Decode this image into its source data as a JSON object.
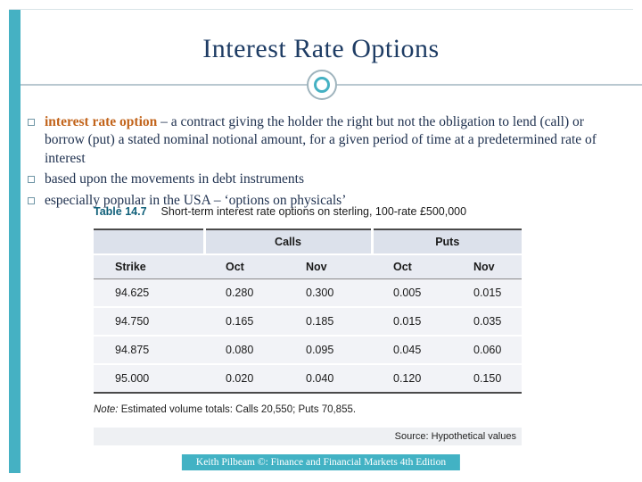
{
  "slide": {
    "title": "Interest Rate Options",
    "bullets": [
      {
        "lead": "interest rate option",
        "text": " – a contract giving the holder the right but not the obligation to lend (call) or borrow (put) a stated nominal notional amount, for a given period of time at a predetermined rate of interest"
      },
      {
        "lead": "",
        "text": "based upon the movements in debt instruments"
      },
      {
        "lead": "",
        "text": "especially popular in the USA – ‘options on physicals’"
      }
    ],
    "footer": "Keith Pilbeam ©: Finance and Financial Markets 4th Edition"
  },
  "table": {
    "label": "Table 14.7",
    "caption": "Short-term interest rate options on sterling, 100-rate £500,000",
    "group_headers": [
      "Calls",
      "Puts"
    ],
    "col_headers": [
      "Strike",
      "Oct",
      "Nov",
      "Oct",
      "Nov"
    ],
    "rows": [
      [
        "94.625",
        "0.280",
        "0.300",
        "0.005",
        "0.015"
      ],
      [
        "94.750",
        "0.165",
        "0.185",
        "0.015",
        "0.035"
      ],
      [
        "94.875",
        "0.080",
        "0.095",
        "0.045",
        "0.060"
      ],
      [
        "95.000",
        "0.020",
        "0.040",
        "0.120",
        "0.150"
      ]
    ],
    "note_label": "Note:",
    "note_text": " Estimated volume totals: Calls 20,550; Puts 70,855.",
    "source": "Source: Hypothetical values"
  },
  "colors": {
    "accent_teal": "#45b1c3",
    "title_navy": "#1e3c64",
    "lead_orange": "#c2641b",
    "table_label_teal": "#10607a"
  }
}
